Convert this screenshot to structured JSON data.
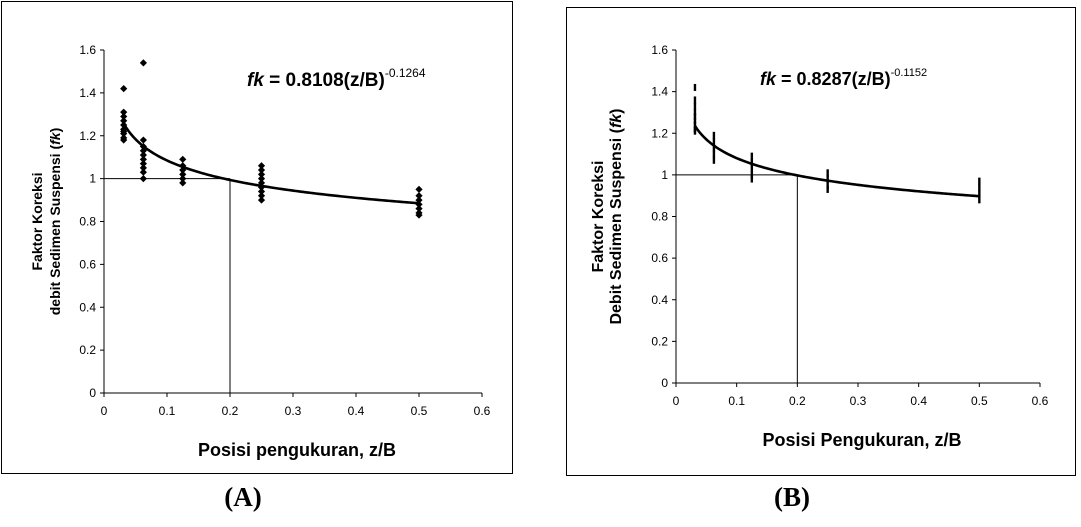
{
  "chart_data": [
    {
      "type": "scatter",
      "panel_label": "(A)",
      "xlabel": "Posisi pengukuran, z/B",
      "ylabel_line1": "Faktor Koreksi",
      "ylabel_line2_prefix": "debit Sedimen Suspensi (",
      "ylabel_line2_italic": "fk",
      "ylabel_line2_suffix": ")",
      "equation": {
        "lhs": "fk",
        "body": " = 0.8108(z/B)",
        "exponent": "-0.1264"
      },
      "fit": {
        "a": 0.8108,
        "b": -0.1264,
        "x_range": [
          0.03125,
          0.5
        ]
      },
      "xlim": [
        0,
        0.6
      ],
      "ylim": [
        0,
        1.6
      ],
      "xticks": [
        "0",
        "0.1",
        "0.2",
        "0.3",
        "0.4",
        "0.5",
        "0.6"
      ],
      "yticks": [
        "0",
        "0.2",
        "0.4",
        "0.6",
        "0.8",
        "1",
        "1.2",
        "1.4",
        "1.6"
      ],
      "reference_lines": {
        "y": 1,
        "x": 0.2
      },
      "marker": "diamond",
      "points": [
        [
          0.03125,
          1.42
        ],
        [
          0.03125,
          1.31
        ],
        [
          0.03125,
          1.29
        ],
        [
          0.03125,
          1.27
        ],
        [
          0.03125,
          1.25
        ],
        [
          0.03125,
          1.23
        ],
        [
          0.03125,
          1.21
        ],
        [
          0.03125,
          1.19
        ],
        [
          0.03125,
          1.18
        ],
        [
          0.03125,
          1.22
        ],
        [
          0.0625,
          1.54
        ],
        [
          0.0625,
          1.18
        ],
        [
          0.0625,
          1.15
        ],
        [
          0.0625,
          1.13
        ],
        [
          0.0625,
          1.11
        ],
        [
          0.0625,
          1.09
        ],
        [
          0.0625,
          1.07
        ],
        [
          0.0625,
          1.05
        ],
        [
          0.0625,
          1.03
        ],
        [
          0.0625,
          1.0
        ],
        [
          0.125,
          1.09
        ],
        [
          0.125,
          1.06
        ],
        [
          0.125,
          1.04
        ],
        [
          0.125,
          1.02
        ],
        [
          0.125,
          1.0
        ],
        [
          0.125,
          0.98
        ],
        [
          0.25,
          1.06
        ],
        [
          0.25,
          1.04
        ],
        [
          0.25,
          1.02
        ],
        [
          0.25,
          1.0
        ],
        [
          0.25,
          0.98
        ],
        [
          0.25,
          0.96
        ],
        [
          0.25,
          0.94
        ],
        [
          0.25,
          0.92
        ],
        [
          0.25,
          0.9
        ],
        [
          0.5,
          0.95
        ],
        [
          0.5,
          0.92
        ],
        [
          0.5,
          0.9
        ],
        [
          0.5,
          0.88
        ],
        [
          0.5,
          0.86
        ],
        [
          0.5,
          0.84
        ],
        [
          0.5,
          0.83
        ]
      ]
    },
    {
      "type": "scatter",
      "panel_label": "(B)",
      "xlabel": "Posisi Pengukuran, z/B",
      "ylabel_line1": "Faktor Koreksi",
      "ylabel_line2_prefix": "Debit Sedimen Suspensi (",
      "ylabel_line2_italic": "fk",
      "ylabel_line2_suffix": ")",
      "equation": {
        "lhs": "fk",
        "body": " = 0.8287(z/B)",
        "exponent": "-0.1152"
      },
      "fit": {
        "a": 0.8287,
        "b": -0.1152,
        "x_range": [
          0.03125,
          0.5
        ]
      },
      "xlim": [
        0,
        0.6
      ],
      "ylim": [
        0,
        1.6
      ],
      "xticks": [
        "0",
        "0.1",
        "0.2",
        "0.3",
        "0.4",
        "0.5",
        "0.6"
      ],
      "yticks": [
        "0",
        "0.2",
        "0.4",
        "0.6",
        "0.8",
        "1",
        "1.2",
        "1.4",
        "1.6"
      ],
      "reference_lines": {
        "y": 1,
        "x": 0.2
      },
      "marker": "dash",
      "points": [
        [
          0.03125,
          1.42
        ],
        [
          0.03125,
          1.36
        ],
        [
          0.03125,
          1.33
        ],
        [
          0.03125,
          1.3
        ],
        [
          0.03125,
          1.28
        ],
        [
          0.03125,
          1.26
        ],
        [
          0.03125,
          1.24
        ],
        [
          0.03125,
          1.22
        ],
        [
          0.03125,
          1.21
        ],
        [
          0.0625,
          1.19
        ],
        [
          0.0625,
          1.16
        ],
        [
          0.0625,
          1.13
        ],
        [
          0.0625,
          1.1
        ],
        [
          0.0625,
          1.07
        ],
        [
          0.125,
          1.09
        ],
        [
          0.125,
          1.06
        ],
        [
          0.125,
          1.03
        ],
        [
          0.125,
          1.0
        ],
        [
          0.125,
          0.98
        ],
        [
          0.25,
          1.01
        ],
        [
          0.25,
          0.98
        ],
        [
          0.25,
          0.95
        ],
        [
          0.25,
          0.93
        ],
        [
          0.5,
          0.97
        ],
        [
          0.5,
          0.94
        ],
        [
          0.5,
          0.91
        ],
        [
          0.5,
          0.88
        ]
      ]
    }
  ]
}
